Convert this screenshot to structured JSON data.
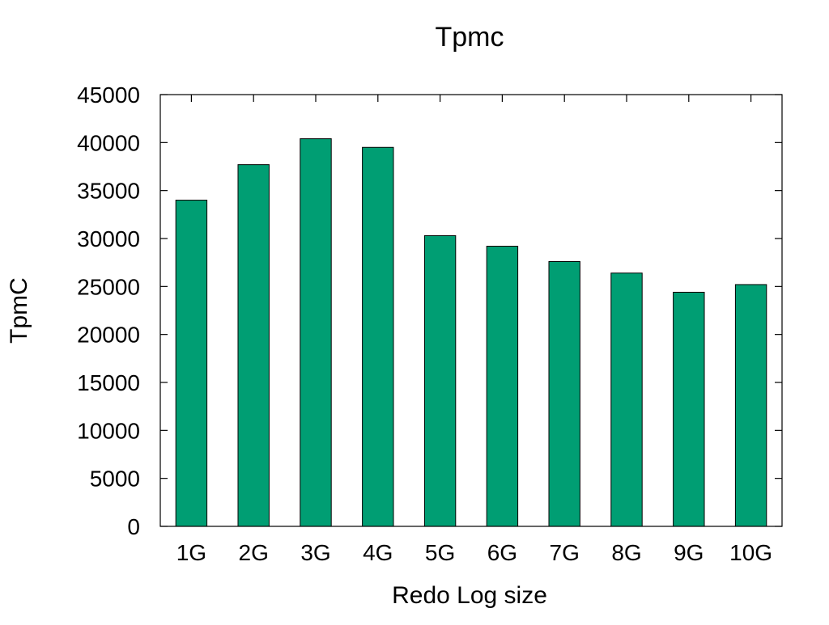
{
  "chart_data": {
    "type": "bar",
    "title": "Tpmc",
    "xlabel": "Redo Log size",
    "ylabel": "TpmC",
    "categories": [
      "1G",
      "2G",
      "3G",
      "4G",
      "5G",
      "6G",
      "7G",
      "8G",
      "9G",
      "10G"
    ],
    "values": [
      34000,
      37700,
      40400,
      39500,
      30300,
      29200,
      27600,
      26400,
      24400,
      25200
    ],
    "ylim": [
      0,
      45000
    ],
    "yticks": [
      "0",
      "5000",
      "10000",
      "15000",
      "20000",
      "25000",
      "30000",
      "35000",
      "40000",
      "45000"
    ],
    "grid": false,
    "legend": "none"
  },
  "colors": {
    "bar_fill": "#009e73",
    "bar_stroke": "#000000",
    "axis": "#000000"
  }
}
